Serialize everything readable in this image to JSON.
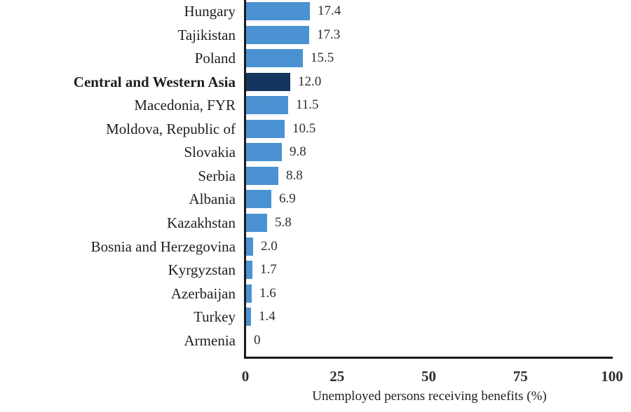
{
  "chart_data": {
    "type": "bar",
    "orientation": "horizontal",
    "title": "",
    "xlabel": "Unemployed persons receiving benefits (%)",
    "ylabel": "",
    "xlim": [
      0,
      100
    ],
    "x_ticks": [
      "0",
      "25",
      "50",
      "75",
      "100"
    ],
    "grid": false,
    "legend": false,
    "rows": [
      {
        "label": "Hungary",
        "value": 17.4,
        "display": "17.4",
        "highlight": false
      },
      {
        "label": "Tajikistan",
        "value": 17.3,
        "display": "17.3",
        "highlight": false
      },
      {
        "label": "Poland",
        "value": 15.5,
        "display": "15.5",
        "highlight": false
      },
      {
        "label": "Central and Western Asia",
        "value": 12.0,
        "display": "12.0",
        "highlight": true
      },
      {
        "label": "Macedonia, FYR",
        "value": 11.5,
        "display": "11.5",
        "highlight": false
      },
      {
        "label": "Moldova, Republic of",
        "value": 10.5,
        "display": "10.5",
        "highlight": false
      },
      {
        "label": "Slovakia",
        "value": 9.8,
        "display": "9.8",
        "highlight": false
      },
      {
        "label": "Serbia",
        "value": 8.8,
        "display": "8.8",
        "highlight": false
      },
      {
        "label": "Albania",
        "value": 6.9,
        "display": "6.9",
        "highlight": false
      },
      {
        "label": "Kazakhstan",
        "value": 5.8,
        "display": "5.8",
        "highlight": false
      },
      {
        "label": "Bosnia and Herzegovina",
        "value": 2.0,
        "display": "2.0",
        "highlight": false
      },
      {
        "label": "Kyrgyzstan",
        "value": 1.7,
        "display": "1.7",
        "highlight": false
      },
      {
        "label": "Azerbaijan",
        "value": 1.6,
        "display": "1.6",
        "highlight": false
      },
      {
        "label": "Turkey",
        "value": 1.4,
        "display": "1.4",
        "highlight": false
      },
      {
        "label": "Armenia",
        "value": 0,
        "display": "0",
        "highlight": false
      }
    ],
    "colors": {
      "bar": "#4B92D2",
      "bar_highlight": "#14355D",
      "axis": "#1A1A1A",
      "text": "#1F1F1F"
    }
  }
}
